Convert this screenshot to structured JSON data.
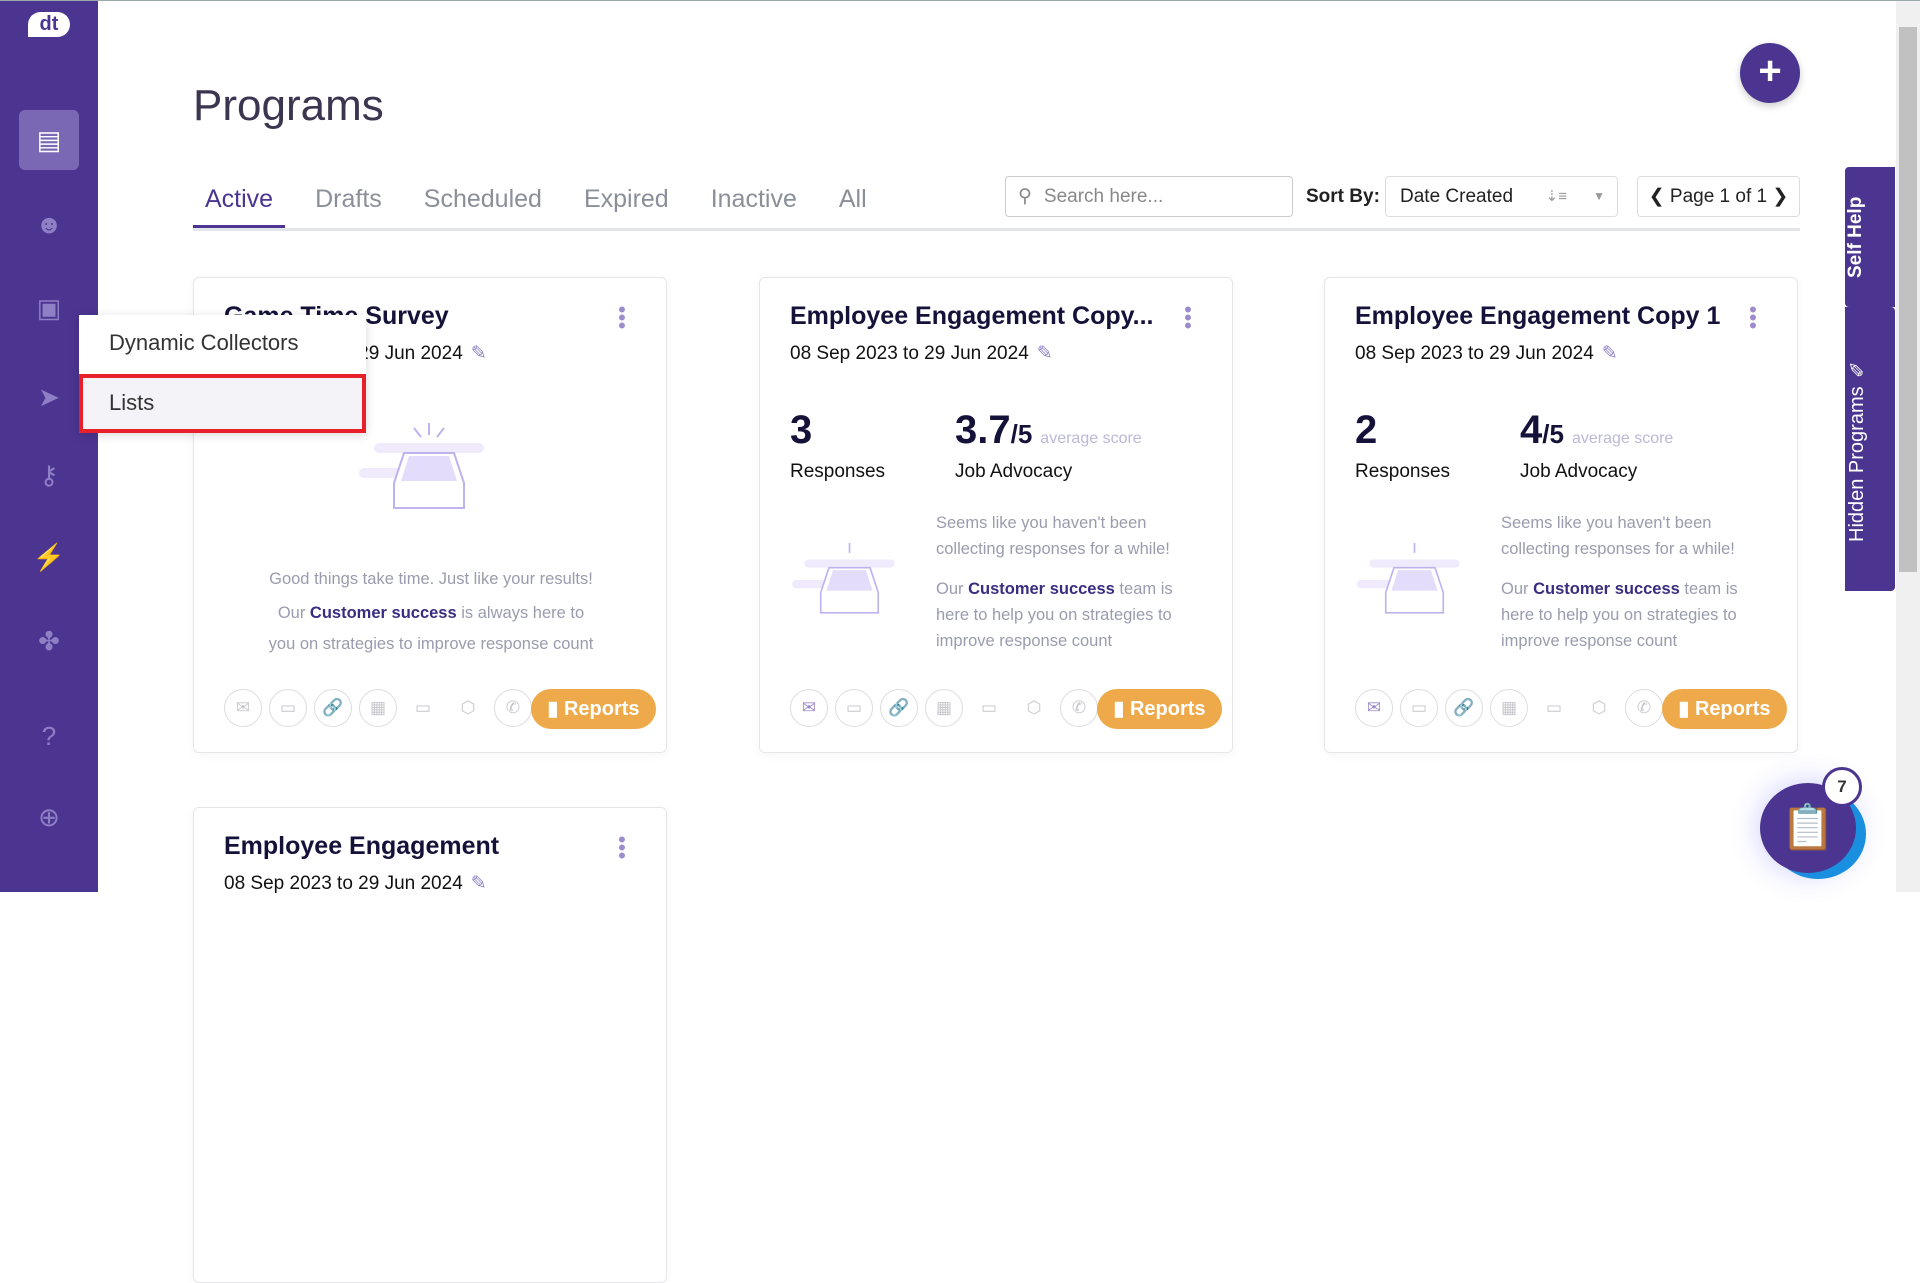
{
  "sidebar": {
    "logo": "dt",
    "items": [
      {
        "name": "programs",
        "icon": "📋"
      },
      {
        "name": "contacts",
        "icon": "☻"
      },
      {
        "name": "collectors",
        "icon": "▣"
      },
      {
        "name": "distribute",
        "icon": "➤"
      },
      {
        "name": "access",
        "icon": "⚷"
      },
      {
        "name": "automation",
        "icon": "⚡"
      },
      {
        "name": "integrations",
        "icon": "✤"
      },
      {
        "name": "help",
        "icon": "?"
      },
      {
        "name": "global",
        "icon": "🌐"
      }
    ]
  },
  "dropdown": {
    "items": [
      "Dynamic Collectors",
      "Lists"
    ]
  },
  "header": {
    "title": "Programs",
    "add": "+"
  },
  "tabs": [
    "Active",
    "Drafts",
    "Scheduled",
    "Expired",
    "Inactive",
    "All"
  ],
  "search": {
    "placeholder": "Search here..."
  },
  "sort": {
    "label": "Sort By:",
    "value": "Date Created"
  },
  "pager": {
    "text": "Page 1 of 1"
  },
  "side_tabs": {
    "self_help": "Self Help",
    "hidden_programs": "Hidden Programs"
  },
  "fab": {
    "badge": "7"
  },
  "cards": [
    {
      "title": "Game Time Survey",
      "date": "08 Sep 2023 to 29 Jun 2024",
      "msg1": "Good things take time. Just like your results!",
      "msg2a": "Our ",
      "msg2b": "Customer success",
      "msg2c": " is always here to",
      "msg3": "you on strategies to improve response count",
      "reports": "Reports"
    },
    {
      "title": "Employee Engagement Copy...",
      "date": "08 Sep 2023 to 29 Jun 2024",
      "responses": "3",
      "responses_label": "Responses",
      "score": "3.7",
      "score_max": "/5",
      "avg": "average score",
      "metric": "Job Advocacy",
      "msg1": "Seems like you haven't been collecting responses for a while!",
      "msg2a": "Our ",
      "msg2b": "Customer success",
      "msg2c": " team is here to help you on strategies to improve response count",
      "reports": "Reports"
    },
    {
      "title": "Employee Engagement Copy 1",
      "date": "08 Sep 2023 to 29 Jun 2024",
      "responses": "2",
      "responses_label": "Responses",
      "score": "4",
      "score_max": "/5",
      "avg": "average score",
      "metric": "Job Advocacy",
      "msg1": "Seems like you haven't been collecting responses for a while!",
      "msg2a": "Our ",
      "msg2b": "Customer success",
      "msg2c": " team is here to help you on strategies to improve response count",
      "reports": "Reports"
    },
    {
      "title": "Employee Engagement",
      "date": "08 Sep 2023 to 29 Jun 2024"
    }
  ],
  "colors": {
    "brand": "#4b3591",
    "reports": "#eeaa4a",
    "highlight": "#e8202a"
  }
}
